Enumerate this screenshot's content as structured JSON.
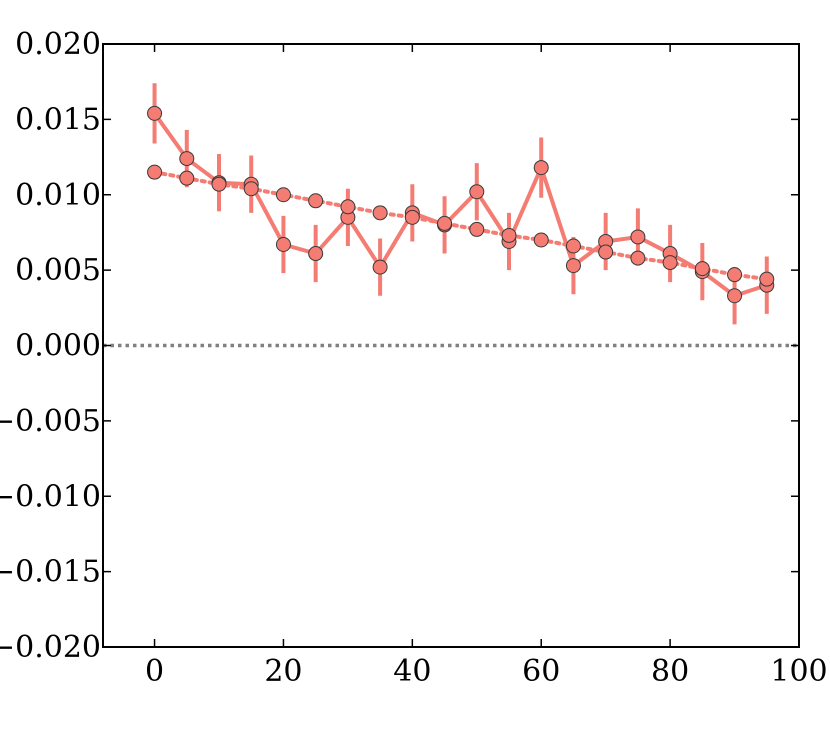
{
  "chart_data": {
    "type": "line",
    "title": "",
    "xlabel": "",
    "ylabel": "",
    "xlim": [
      -8,
      100
    ],
    "ylim": [
      -0.02,
      0.02
    ],
    "x_ticks": [
      0,
      20,
      40,
      60,
      80,
      100
    ],
    "x_tick_labels": [
      "0",
      "20",
      "40",
      "60",
      "80",
      "100"
    ],
    "y_ticks": [
      -0.02,
      -0.015,
      -0.01,
      -0.005,
      0.0,
      0.005,
      0.01,
      0.015,
      0.02
    ],
    "y_tick_labels": [
      "−0.020",
      "−0.015",
      "−0.010",
      "−0.005",
      "0.000",
      "0.005",
      "0.010",
      "0.015",
      "0.020"
    ],
    "grid": false,
    "reference_line": {
      "y": 0.0,
      "style": "dotted",
      "color": "#808080"
    },
    "x": [
      0,
      5,
      10,
      15,
      20,
      25,
      30,
      35,
      40,
      45,
      50,
      55,
      60,
      65,
      70,
      75,
      80,
      85,
      90,
      95
    ],
    "series": [
      {
        "style": "solid-with-errorbars",
        "color": "#f47c72",
        "marker_color": "#f47c72",
        "values": [
          0.0154,
          0.0124,
          0.0108,
          0.0107,
          0.0067,
          0.0061,
          0.0085,
          0.0052,
          0.0088,
          0.008,
          0.0102,
          0.0069,
          0.0118,
          0.0053,
          0.0069,
          0.0072,
          0.0061,
          0.0049,
          0.0033,
          0.004
        ],
        "errors": [
          0.002,
          0.0019,
          0.0019,
          0.0019,
          0.0019,
          0.0019,
          0.0019,
          0.0019,
          0.0019,
          0.0019,
          0.0019,
          0.0019,
          0.002,
          0.0019,
          0.0019,
          0.0019,
          0.0019,
          0.0019,
          0.0019,
          0.0019
        ]
      },
      {
        "style": "dotted",
        "color": "#f47c72",
        "marker_color": "#f47c72",
        "values": [
          0.0115,
          0.0111,
          0.0107,
          0.0104,
          0.01,
          0.0096,
          0.0092,
          0.0088,
          0.0085,
          0.0081,
          0.0077,
          0.0073,
          0.007,
          0.0066,
          0.0062,
          0.0058,
          0.0055,
          0.0051,
          0.0047,
          0.0044
        ]
      }
    ]
  }
}
